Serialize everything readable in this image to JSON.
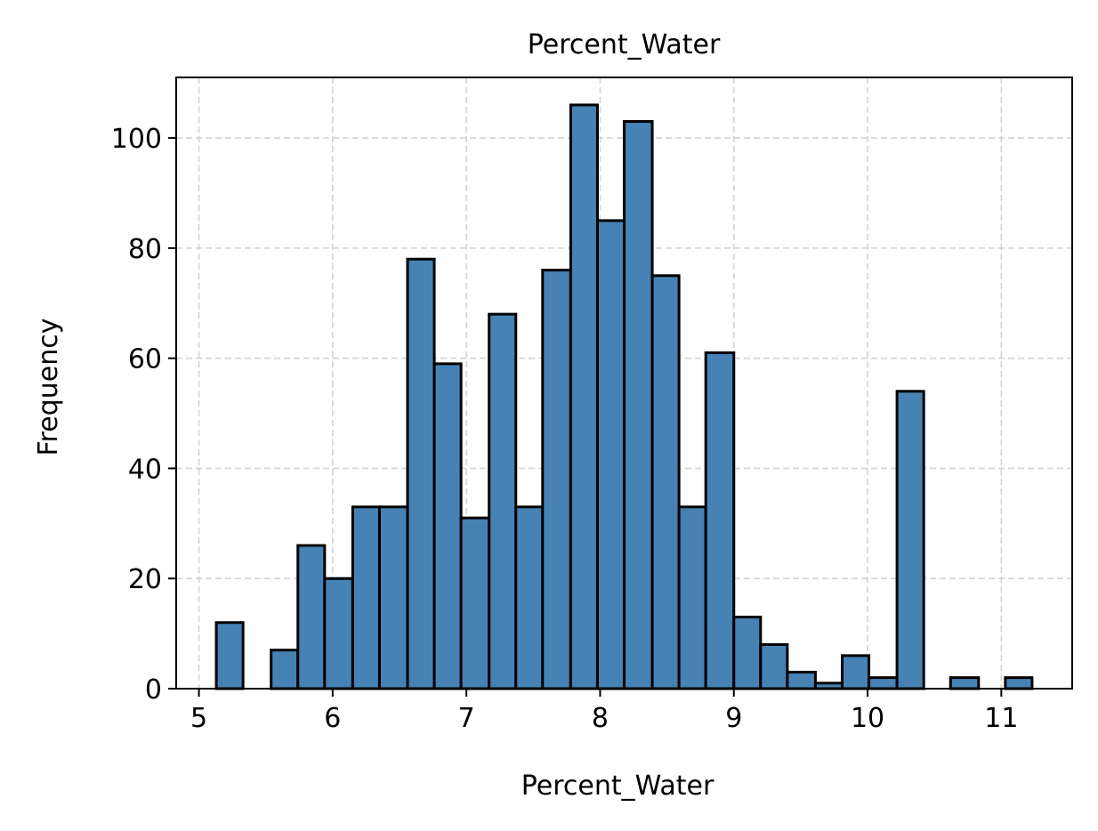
{
  "chart_data": {
    "type": "bar",
    "subtype": "histogram",
    "title": "Percent_Water",
    "xlabel": "Percent_Water",
    "ylabel": "Frequency",
    "xlim": [
      4.83,
      11.53
    ],
    "ylim": [
      0,
      111
    ],
    "xticks": [
      5,
      6,
      7,
      8,
      9,
      10,
      11
    ],
    "yticks": [
      0,
      20,
      40,
      60,
      80,
      100
    ],
    "grid": true,
    "bar_color": "#4682B4",
    "edge_color": "#000000",
    "bins": [
      {
        "x0": 5.13,
        "x1": 5.33,
        "count": 12
      },
      {
        "x0": 5.33,
        "x1": 5.54,
        "count": 0
      },
      {
        "x0": 5.54,
        "x1": 5.74,
        "count": 7
      },
      {
        "x0": 5.74,
        "x1": 5.94,
        "count": 26
      },
      {
        "x0": 5.94,
        "x1": 6.15,
        "count": 20
      },
      {
        "x0": 6.15,
        "x1": 6.35,
        "count": 33
      },
      {
        "x0": 6.35,
        "x1": 6.56,
        "count": 33
      },
      {
        "x0": 6.56,
        "x1": 6.76,
        "count": 78
      },
      {
        "x0": 6.76,
        "x1": 6.96,
        "count": 59
      },
      {
        "x0": 6.96,
        "x1": 7.17,
        "count": 31
      },
      {
        "x0": 7.17,
        "x1": 7.37,
        "count": 68
      },
      {
        "x0": 7.37,
        "x1": 7.57,
        "count": 33
      },
      {
        "x0": 7.57,
        "x1": 7.78,
        "count": 76
      },
      {
        "x0": 7.78,
        "x1": 7.98,
        "count": 106
      },
      {
        "x0": 7.98,
        "x1": 8.18,
        "count": 85
      },
      {
        "x0": 8.18,
        "x1": 8.39,
        "count": 103
      },
      {
        "x0": 8.39,
        "x1": 8.59,
        "count": 75
      },
      {
        "x0": 8.59,
        "x1": 8.79,
        "count": 33
      },
      {
        "x0": 8.79,
        "x1": 9.0,
        "count": 61
      },
      {
        "x0": 9.0,
        "x1": 9.2,
        "count": 13
      },
      {
        "x0": 9.2,
        "x1": 9.4,
        "count": 8
      },
      {
        "x0": 9.4,
        "x1": 9.61,
        "count": 3
      },
      {
        "x0": 9.61,
        "x1": 9.81,
        "count": 1
      },
      {
        "x0": 9.81,
        "x1": 10.01,
        "count": 6
      },
      {
        "x0": 10.01,
        "x1": 10.22,
        "count": 2
      },
      {
        "x0": 10.22,
        "x1": 10.42,
        "count": 54
      },
      {
        "x0": 10.42,
        "x1": 10.62,
        "count": 0
      },
      {
        "x0": 10.62,
        "x1": 10.83,
        "count": 2
      },
      {
        "x0": 10.83,
        "x1": 11.03,
        "count": 0
      },
      {
        "x0": 11.03,
        "x1": 11.23,
        "count": 2
      }
    ]
  }
}
